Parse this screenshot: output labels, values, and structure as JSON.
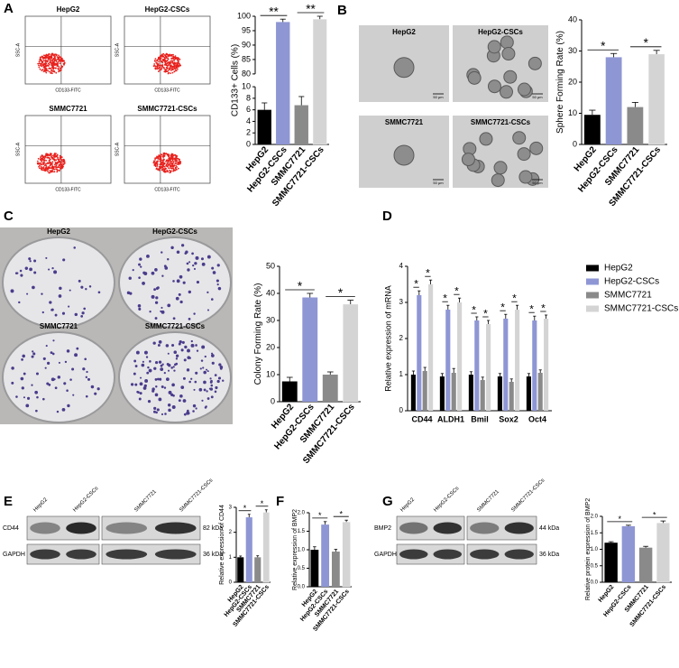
{
  "panels": {
    "a": "A",
    "b": "B",
    "c": "C",
    "d": "D",
    "e": "E",
    "f": "F",
    "g": "G"
  },
  "flow": {
    "titles": [
      "HepG2",
      "HepG2-CSCs",
      "SMMC7721",
      "SMMC7721-CSCs"
    ],
    "x_label": "CD133-FITC",
    "y_label": "SSC-A"
  },
  "spheres": {
    "titles": [
      "HepG2",
      "HepG2-CSCs",
      "SMMC7721",
      "SMMC7721-CSCs"
    ],
    "scale": "50 μm"
  },
  "colony": {
    "titles": [
      "HepG2",
      "HepG2-CSCs",
      "SMMC7721",
      "SMMC7721-CSCs"
    ]
  },
  "blot_e": {
    "lanes": [
      "HepG2",
      "HepG2-CSCs",
      "SMMC7721",
      "SMMC7721-CSCs"
    ],
    "rows": [
      "CD44",
      "GAPDH"
    ],
    "sizes": [
      "82 kDa",
      "36 kDa"
    ]
  },
  "blot_g": {
    "lanes": [
      "HepG2",
      "HepG2-CSCs",
      "SMMC7721",
      "SMMC7721-CSCs"
    ],
    "rows": [
      "BMP2",
      "GAPDH"
    ],
    "sizes": [
      "44 kDa",
      "36 kDa"
    ]
  },
  "chart_data": [
    {
      "type": "bar",
      "y_label": "CD133+ Cells (%)",
      "categories": [
        "HepG2",
        "HepG2-CSCs",
        "SMMC7721",
        "SMMC7721-CSCs"
      ],
      "values": [
        6,
        98,
        6.8,
        99
      ],
      "errors": [
        1.2,
        1,
        1.5,
        1
      ],
      "colors": [
        "#000000",
        "#8e96d4",
        "#8a8a8a",
        "#d4d4d4"
      ],
      "ylim": [
        0,
        100
      ],
      "axis_break": [
        10,
        80
      ],
      "yticks": [
        0,
        2,
        4,
        6,
        8,
        10,
        80,
        85,
        90,
        95,
        100
      ],
      "significance": "**"
    },
    {
      "type": "bar",
      "y_label": "Sphere Forming Rate (%)",
      "categories": [
        "HepG2",
        "HepG2-CSCs",
        "SMMC7721",
        "SMMC7721-CSCs"
      ],
      "values": [
        9.5,
        28,
        12,
        29
      ],
      "errors": [
        1.5,
        1.2,
        1.5,
        1.2
      ],
      "colors": [
        "#000000",
        "#8e96d4",
        "#8a8a8a",
        "#d4d4d4"
      ],
      "ylim": [
        0,
        40
      ],
      "yticks": [
        0,
        10,
        20,
        30,
        40
      ],
      "significance": "*"
    },
    {
      "type": "bar",
      "y_label": "Colony Forming Rate (%)",
      "categories": [
        "HepG2",
        "HepG2-CSCs",
        "SMMC7721",
        "SMMC7721-CSCs"
      ],
      "values": [
        7.5,
        38.5,
        10,
        36
      ],
      "errors": [
        1.5,
        1.5,
        1,
        1.5
      ],
      "colors": [
        "#000000",
        "#8e96d4",
        "#8a8a8a",
        "#d4d4d4"
      ],
      "ylim": [
        0,
        50
      ],
      "yticks": [
        0,
        10,
        20,
        30,
        40,
        50
      ],
      "significance": "*"
    },
    {
      "type": "grouped_bar",
      "y_label": "Relative expression of mRNA",
      "categories": [
        "CD44",
        "ALDH1",
        "Bmil",
        "Sox2",
        "Oct4"
      ],
      "series": [
        {
          "name": "HepG2",
          "color": "#000000",
          "values": [
            1,
            0.95,
            1,
            0.95,
            0.95
          ],
          "errors": [
            0.1,
            0.08,
            0.08,
            0.08,
            0.08
          ]
        },
        {
          "name": "HepG2-CSCs",
          "color": "#8e96d4",
          "values": [
            3.2,
            2.8,
            2.5,
            2.55,
            2.5
          ],
          "errors": [
            0.12,
            0.12,
            0.1,
            0.12,
            0.12
          ]
        },
        {
          "name": "SMMC7721",
          "color": "#8a8a8a",
          "values": [
            1.1,
            1.05,
            0.85,
            0.8,
            1.05
          ],
          "errors": [
            0.1,
            0.12,
            0.08,
            0.08,
            0.08
          ]
        },
        {
          "name": "SMMC7721-CSCs",
          "color": "#d4d4d4",
          "values": [
            3.5,
            3.0,
            2.4,
            2.8,
            2.55
          ],
          "errors": [
            0.12,
            0.12,
            0.1,
            0.12,
            0.1
          ]
        }
      ],
      "ylim": [
        0,
        4
      ],
      "yticks": [
        0,
        1,
        2,
        3,
        4
      ],
      "legend": "right",
      "significance": "*"
    },
    {
      "type": "bar",
      "y_label": "Relative expression of CD44",
      "categories": [
        "HepG2",
        "HepG2-CSCs",
        "SMMC7721",
        "SMMC7721-CSCs"
      ],
      "values": [
        1,
        2.6,
        1,
        2.8
      ],
      "errors": [
        0.05,
        0.12,
        0.06,
        0.1
      ],
      "colors": [
        "#000000",
        "#8e96d4",
        "#8a8a8a",
        "#d4d4d4"
      ],
      "ylim": [
        0,
        3
      ],
      "yticks": [
        0,
        1,
        2,
        3
      ],
      "significance": "*"
    },
    {
      "type": "bar",
      "y_label": "Relative expression of BMP2",
      "categories": [
        "HepG2",
        "HepG2-CSCs",
        "SMMC7721",
        "SMMC7721-CSCs"
      ],
      "values": [
        1,
        1.68,
        0.95,
        1.75
      ],
      "errors": [
        0.08,
        0.08,
        0.06,
        0.05
      ],
      "colors": [
        "#000000",
        "#8e96d4",
        "#8a8a8a",
        "#d4d4d4"
      ],
      "ylim": [
        0,
        2
      ],
      "yticks": [
        {
          "value": 0,
          "label": "0.0"
        },
        {
          "value": 0.5,
          "label": "0.5"
        },
        {
          "value": 1,
          "label": "1.0"
        },
        {
          "value": 1.5,
          "label": "1.5"
        },
        {
          "value": 2,
          "label": "2.0"
        }
      ],
      "significance": "*"
    },
    {
      "type": "bar",
      "y_label": "Relative protein expression of BMP2",
      "categories": [
        "HepG2",
        "HepG2-CSCs",
        "SMMC7721",
        "SMMC7721-CSCs"
      ],
      "values": [
        1.2,
        1.7,
        1.05,
        1.8
      ],
      "errors": [
        0.03,
        0.03,
        0.04,
        0.06
      ],
      "colors": [
        "#000000",
        "#8e96d4",
        "#8a8a8a",
        "#d4d4d4"
      ],
      "ylim": [
        0,
        2
      ],
      "yticks": [
        {
          "value": 0,
          "label": "0.0"
        },
        {
          "value": 0.5,
          "label": "0.5"
        },
        {
          "value": 1,
          "label": "1.0"
        },
        {
          "value": 1.5,
          "label": "1.5"
        },
        {
          "value": 2,
          "label": "2.0"
        }
      ],
      "significance": "*"
    }
  ]
}
